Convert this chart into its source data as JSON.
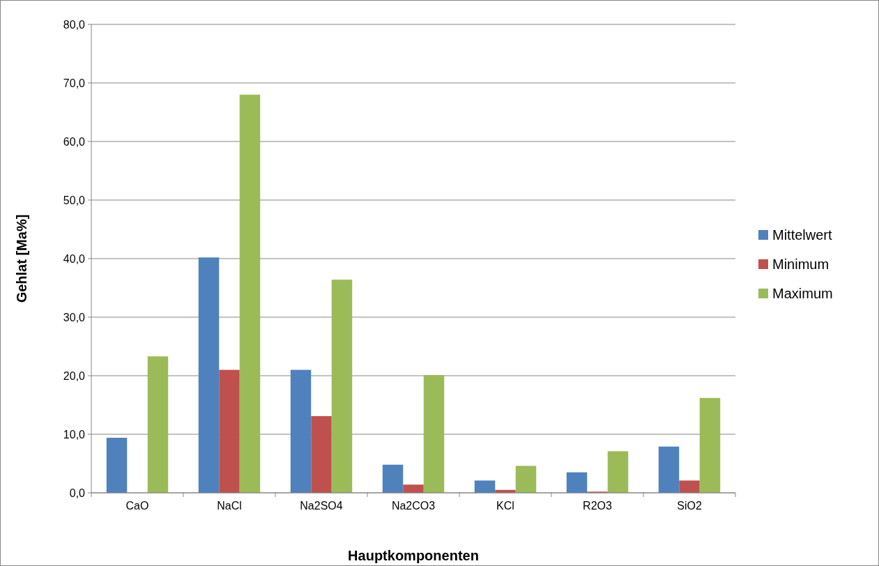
{
  "chart_data": {
    "type": "bar",
    "xlabel": "Hauptkomponenten",
    "ylabel": "Gehlat [Ma%]",
    "categories": [
      "CaO",
      "NaCl",
      "Na2SO4",
      "Na2CO3",
      "KCl",
      "R2O3",
      "SiO2"
    ],
    "series": [
      {
        "name": "Mittelwert",
        "color": "#4f81bd",
        "values": [
          9.4,
          40.2,
          21.0,
          4.8,
          2.1,
          3.5,
          7.9
        ]
      },
      {
        "name": "Minimum",
        "color": "#c0504d",
        "values": [
          null,
          21.0,
          13.1,
          1.4,
          0.5,
          0.2,
          2.1
        ]
      },
      {
        "name": "Maximum",
        "color": "#9bbb59",
        "values": [
          23.3,
          68.0,
          36.4,
          20.1,
          4.6,
          7.1,
          16.2
        ]
      }
    ],
    "ylim": [
      0,
      80
    ],
    "yticks": [
      {
        "value": 0,
        "label": "0,0"
      },
      {
        "value": 10,
        "label": "10,0"
      },
      {
        "value": 20,
        "label": "20,0"
      },
      {
        "value": 30,
        "label": "30,0"
      },
      {
        "value": 40,
        "label": "40,0"
      },
      {
        "value": 50,
        "label": "50,0"
      },
      {
        "value": 60,
        "label": "60,0"
      },
      {
        "value": 70,
        "label": "70,0"
      },
      {
        "value": 80,
        "label": "80,0"
      }
    ],
    "grid": "y",
    "legend": "right"
  }
}
